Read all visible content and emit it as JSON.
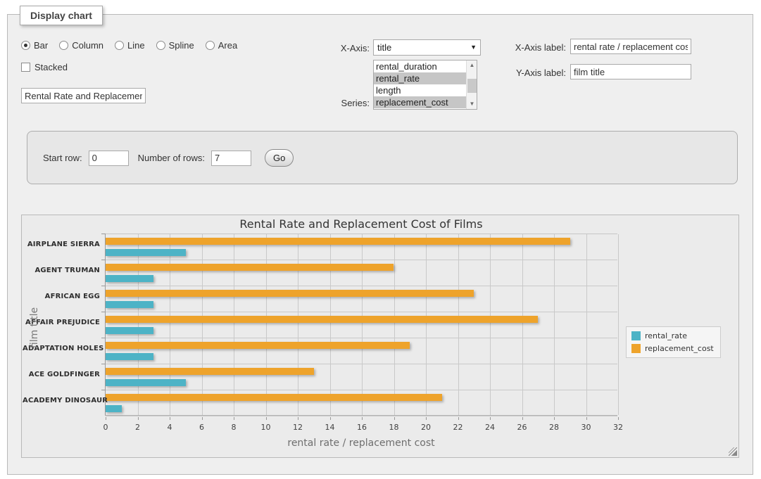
{
  "panel": {
    "legend": "Display chart"
  },
  "controls": {
    "chart_types": {
      "options": [
        "Bar",
        "Column",
        "Line",
        "Spline",
        "Area"
      ],
      "selected": "Bar"
    },
    "stacked": {
      "label": "Stacked",
      "checked": false
    },
    "chart_title_input": {
      "value": "Rental Rate and Replacement Cost of Films"
    },
    "x_axis": {
      "label": "X-Axis:",
      "value": "title"
    },
    "series": {
      "label": "Series:",
      "visible_options": [
        "rental_duration",
        "rental_rate",
        "length",
        "replacement_cost"
      ],
      "selected": [
        "rental_rate",
        "replacement_cost"
      ]
    },
    "x_axis_label": {
      "label": "X-Axis label:",
      "value": "rental rate / replacement cost"
    },
    "y_axis_label": {
      "label": "Y-Axis label:",
      "value": "film title"
    }
  },
  "row_controls": {
    "start_row": {
      "label": "Start row:",
      "value": "0"
    },
    "num_rows": {
      "label": "Number of rows:",
      "value": "7"
    },
    "go_label": "Go"
  },
  "chart_data": {
    "type": "bar",
    "title": "Rental Rate and Replacement Cost of Films",
    "categories": [
      "AIRPLANE SIERRA",
      "AGENT TRUMAN",
      "AFRICAN EGG",
      "AFFAIR PREJUDICE",
      "ADAPTATION HOLES",
      "ACE GOLDFINGER",
      "ACADEMY DINOSAUR"
    ],
    "series": [
      {
        "name": "rental_rate",
        "color": "#4DB3C6",
        "values": [
          4.99,
          2.99,
          2.99,
          2.99,
          2.99,
          4.99,
          0.99
        ]
      },
      {
        "name": "replacement_cost",
        "color": "#EEA32B",
        "values": [
          28.99,
          17.99,
          22.99,
          26.99,
          18.99,
          12.99,
          20.99
        ]
      }
    ],
    "xlabel": "rental rate / replacement cost",
    "ylabel": "film title",
    "xlim": [
      0,
      32
    ],
    "tick_step": 2,
    "bar_group_order": [
      "replacement_cost",
      "rental_rate"
    ],
    "legend_position": "right",
    "grid": true
  }
}
